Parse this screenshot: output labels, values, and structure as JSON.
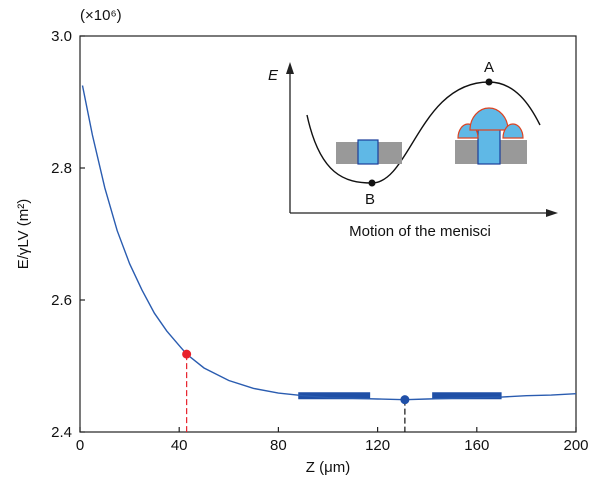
{
  "chart_data": {
    "type": "line",
    "y_scale_label": "(×10⁶)",
    "x_label": "Z (μm)",
    "y_label": "E/γLV (m²)",
    "x": [
      1,
      5,
      10,
      15,
      20,
      25,
      30,
      35,
      40,
      43,
      50,
      60,
      70,
      80,
      90,
      100,
      110,
      120,
      131,
      140,
      150,
      160,
      170,
      180,
      190,
      200
    ],
    "series": [
      {
        "color": "#2a5cb0",
        "values": [
          2.925,
          2.85,
          2.77,
          2.705,
          2.655,
          2.615,
          2.58,
          2.553,
          2.531,
          2.518,
          2.497,
          2.478,
          2.466,
          2.459,
          2.455,
          2.452,
          2.451,
          2.45,
          2.449,
          2.45,
          2.451,
          2.452,
          2.453,
          2.455,
          2.456,
          2.458
        ]
      }
    ],
    "points": [
      {
        "x": 43,
        "y": 2.518,
        "color": "#e8202a"
      },
      {
        "x": 131,
        "y": 2.449,
        "color": "#2050a8"
      }
    ],
    "ranges": {
      "color": "#1f4fa6",
      "y": 2.455,
      "spans": [
        [
          88,
          117
        ],
        [
          142,
          170
        ]
      ]
    },
    "xlim": [
      0,
      200
    ],
    "xticks": [
      0,
      40,
      80,
      120,
      160,
      200
    ],
    "ylim": [
      2.4,
      3.0
    ],
    "yticks": [
      2.4,
      2.6,
      2.8,
      {
        "value": 3.0,
        "label": "3.0"
      }
    ],
    "inset": {
      "y_label": "E",
      "point_labels": [
        "A",
        "B"
      ],
      "x_label": "Motion of the menisci"
    }
  }
}
